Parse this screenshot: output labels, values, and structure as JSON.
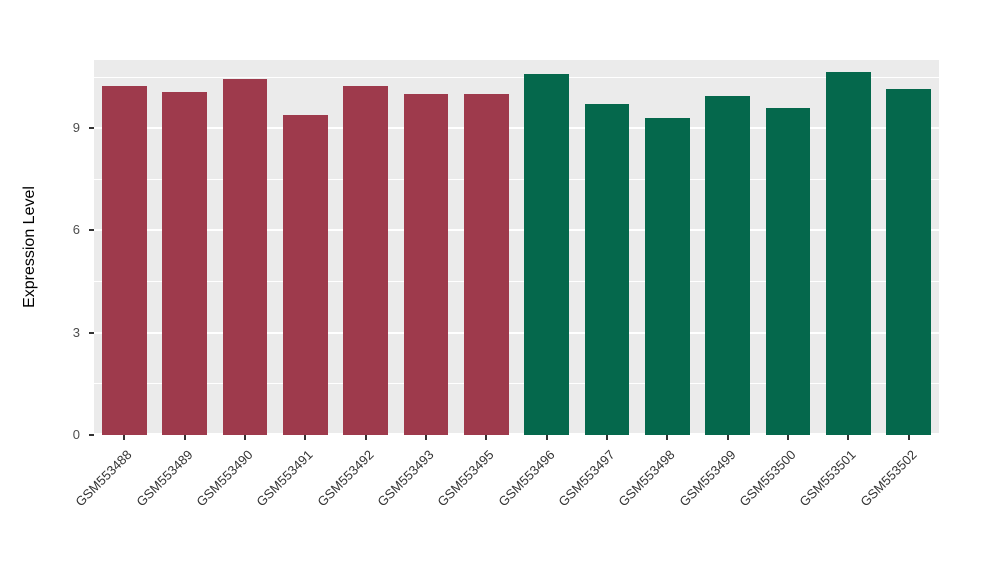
{
  "chart_data": {
    "type": "bar",
    "title": "",
    "xlabel": "",
    "ylabel": "Expression Level",
    "categories": [
      "GSM553488",
      "GSM553489",
      "GSM553490",
      "GSM553491",
      "GSM553492",
      "GSM553493",
      "GSM553495",
      "GSM553496",
      "GSM553497",
      "GSM553498",
      "GSM553499",
      "GSM553500",
      "GSM553501",
      "GSM553502"
    ],
    "values": [
      10.25,
      10.05,
      10.45,
      9.4,
      10.25,
      10.0,
      10.0,
      10.6,
      9.7,
      9.3,
      9.95,
      9.6,
      10.65,
      10.15
    ],
    "groups": [
      "red",
      "red",
      "red",
      "red",
      "red",
      "red",
      "red",
      "green",
      "green",
      "green",
      "green",
      "green",
      "green",
      "green"
    ],
    "group_colors": {
      "red": "#9E3A4C",
      "green": "#05684C"
    },
    "ylim": [
      0,
      11
    ],
    "yticks": [
      0,
      3,
      6,
      9
    ],
    "minor_gridlines": [
      1.5,
      4.5,
      7.5,
      10.5
    ],
    "grid": true,
    "legend_position": "none",
    "panel_background": "#EBEBEB",
    "gridline_color": "#FFFFFF"
  }
}
